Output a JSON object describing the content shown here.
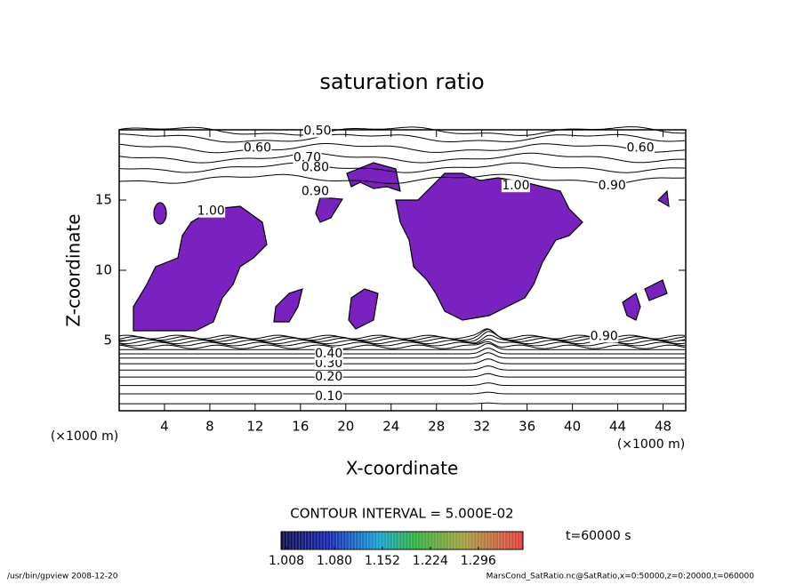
{
  "chart_data": {
    "type": "contour",
    "title": "saturation ratio",
    "xlabel": "X-coordinate",
    "ylabel": "Z-coordinate",
    "x_unit": "(×1000 m)",
    "xlim": [
      0,
      50
    ],
    "ylim": [
      0,
      20
    ],
    "xticks": [
      4,
      8,
      12,
      16,
      20,
      24,
      28,
      32,
      36,
      40,
      44,
      48
    ],
    "yticks": [
      5,
      10,
      15
    ],
    "lower_contour_z": [
      0.5,
      1.2,
      1.8,
      2.4,
      2.9,
      3.35,
      3.75,
      4.05,
      4.35,
      4.55,
      4.75,
      4.9,
      5.05,
      5.15,
      5.25
    ],
    "upper_contour_z": [
      19.9,
      19.4,
      18.7,
      18.0,
      17.3,
      16.5
    ],
    "contour_labels": [
      {
        "label": "0.10",
        "x": 18.5,
        "z": 1.0
      },
      {
        "label": "0.20",
        "x": 18.5,
        "z": 2.4
      },
      {
        "label": "0.30",
        "x": 18.5,
        "z": 3.35
      },
      {
        "label": "0.40",
        "x": 18.5,
        "z": 4.05
      },
      {
        "label": "0.50",
        "x": 17.5,
        "z": 19.9
      },
      {
        "label": "0.60",
        "x": 12.2,
        "z": 18.7
      },
      {
        "label": "0.70",
        "x": 16.6,
        "z": 18.0
      },
      {
        "label": "0.80",
        "x": 17.3,
        "z": 17.3
      },
      {
        "label": "0.90",
        "x": 17.3,
        "z": 15.6
      },
      {
        "label": "1.00",
        "x": 8.1,
        "z": 14.2
      },
      {
        "label": "1.00",
        "x": 35.0,
        "z": 16.0
      },
      {
        "label": "0.90",
        "x": 43.5,
        "z": 16.0
      },
      {
        "label": "0.60",
        "x": 46.0,
        "z": 18.7
      },
      {
        "label": "0.90",
        "x": 42.8,
        "z": 5.3
      }
    ],
    "contour_interval": "CONTOUR INTERVAL = 5.000E-02",
    "colorbar_lim": [
      1.0,
      1.363
    ],
    "colorbar_ticks": [
      1.008,
      {
        "value": 1.08,
        "label": "1.080"
      },
      1.152,
      1.224,
      1.296
    ],
    "time_label": "t=60000 s",
    "footer_left": "/usr/bin/gpview   2008-12-20",
    "footer_right": "MarsCond_SatRatio.nc@SatRatio,x=0:50000,z=0:20000,t=060000"
  }
}
